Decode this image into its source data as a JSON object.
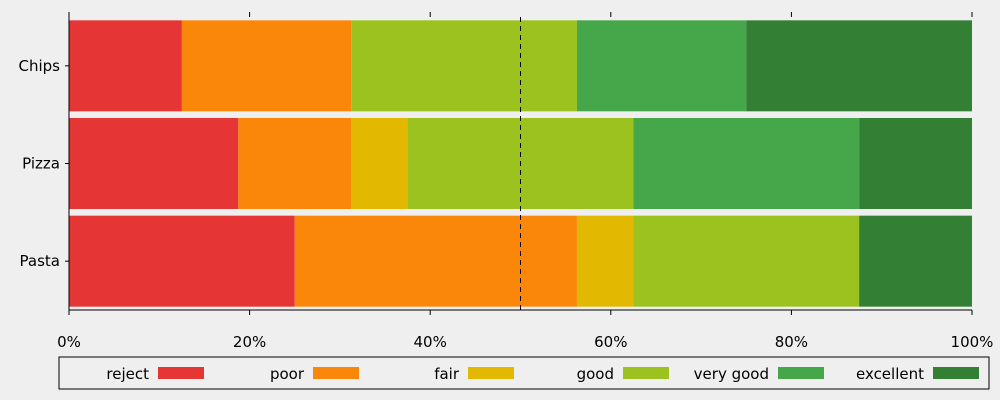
{
  "chart_data": {
    "type": "bar",
    "orientation": "horizontal",
    "stacked": true,
    "normalized": true,
    "categories": [
      "Chips",
      "Pizza",
      "Pasta"
    ],
    "series": [
      {
        "name": "reject",
        "color": "#e53535",
        "values": [
          12.5,
          18.75,
          25.0
        ]
      },
      {
        "name": "poor",
        "color": "#fa870a",
        "values": [
          18.75,
          12.5,
          31.25
        ]
      },
      {
        "name": "fair",
        "color": "#e2b800",
        "values": [
          0,
          6.25,
          6.25
        ]
      },
      {
        "name": "good",
        "color": "#9cc21f",
        "values": [
          25.0,
          25.0,
          25.0
        ]
      },
      {
        "name": "very good",
        "color": "#46a64a",
        "values": [
          18.75,
          25.0,
          0
        ]
      },
      {
        "name": "excellent",
        "color": "#338034",
        "values": [
          25.0,
          12.5,
          12.5
        ]
      }
    ],
    "xlim": [
      0,
      100
    ],
    "xticks": [
      "0%",
      "20%",
      "40%",
      "60%",
      "80%",
      "100%"
    ],
    "reference_line": 50,
    "legend_position": "bottom",
    "grid": false,
    "title": "",
    "xlabel": "",
    "ylabel": ""
  }
}
